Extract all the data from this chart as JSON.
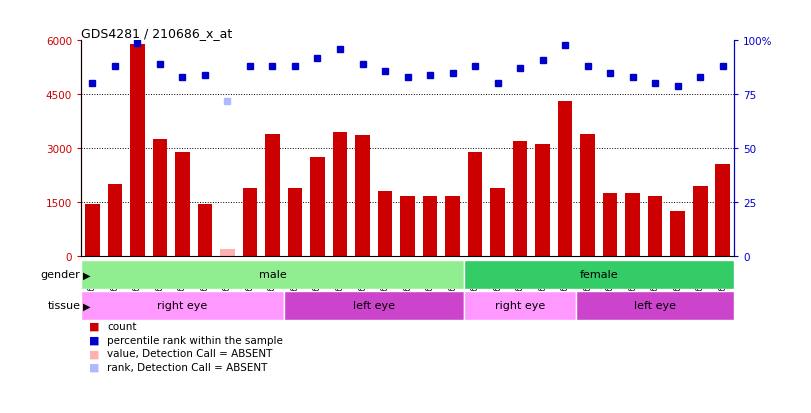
{
  "title": "GDS4281 / 210686_x_at",
  "samples": [
    "GSM685471",
    "GSM685472",
    "GSM685473",
    "GSM685601",
    "GSM685650",
    "GSM685651",
    "GSM686961",
    "GSM686962",
    "GSM686988",
    "GSM686990",
    "GSM685522",
    "GSM685523",
    "GSM685603",
    "GSM686963",
    "GSM686986",
    "GSM686989",
    "GSM686991",
    "GSM685474",
    "GSM685602",
    "GSM686984",
    "GSM686985",
    "GSM686987",
    "GSM687004",
    "GSM685470",
    "GSM685475",
    "GSM685652",
    "GSM687001",
    "GSM687002",
    "GSM687003"
  ],
  "counts": [
    1450,
    2000,
    5900,
    3250,
    2900,
    1450,
    200,
    1900,
    3400,
    1900,
    2750,
    3450,
    3350,
    1800,
    1650,
    1650,
    1650,
    2900,
    1900,
    3200,
    3100,
    4300,
    3400,
    1750,
    1750,
    1650,
    1250,
    1950,
    2550
  ],
  "absent_value_indices": [
    6
  ],
  "absent_rank_indices": [
    6
  ],
  "percentile_ranks": [
    80,
    88,
    99,
    89,
    83,
    84,
    72,
    88,
    88,
    88,
    92,
    96,
    89,
    86,
    83,
    84,
    85,
    88,
    80,
    87,
    91,
    98,
    88,
    85,
    83,
    80,
    79,
    83,
    88
  ],
  "bar_color": "#CC0000",
  "absent_bar_color": "#FFB0B0",
  "rank_color": "#0000CC",
  "absent_rank_color": "#B0B8FF",
  "ylim_left": [
    0,
    6000
  ],
  "ylim_right": [
    0,
    100
  ],
  "yticks_left": [
    0,
    1500,
    3000,
    4500,
    6000
  ],
  "yticks_right": [
    0,
    25,
    50,
    75,
    100
  ],
  "gender_groups": [
    {
      "label": "male",
      "start": 0,
      "end": 17,
      "color": "#90EE90"
    },
    {
      "label": "female",
      "start": 17,
      "end": 29,
      "color": "#33CC66"
    }
  ],
  "tissue_groups": [
    {
      "label": "right eye",
      "start": 0,
      "end": 9,
      "color": "#FF99FF"
    },
    {
      "label": "left eye",
      "start": 9,
      "end": 17,
      "color": "#CC44CC"
    },
    {
      "label": "right eye",
      "start": 17,
      "end": 22,
      "color": "#FF99FF"
    },
    {
      "label": "left eye",
      "start": 22,
      "end": 29,
      "color": "#CC44CC"
    }
  ],
  "legend_items": [
    {
      "label": "count",
      "color": "#CC0000"
    },
    {
      "label": "percentile rank within the sample",
      "color": "#0000CC"
    },
    {
      "label": "value, Detection Call = ABSENT",
      "color": "#FFB0B0"
    },
    {
      "label": "rank, Detection Call = ABSENT",
      "color": "#B0B8FF"
    }
  ],
  "background_color": "#FFFFFF",
  "plot_bg_color": "#FFFFFF"
}
